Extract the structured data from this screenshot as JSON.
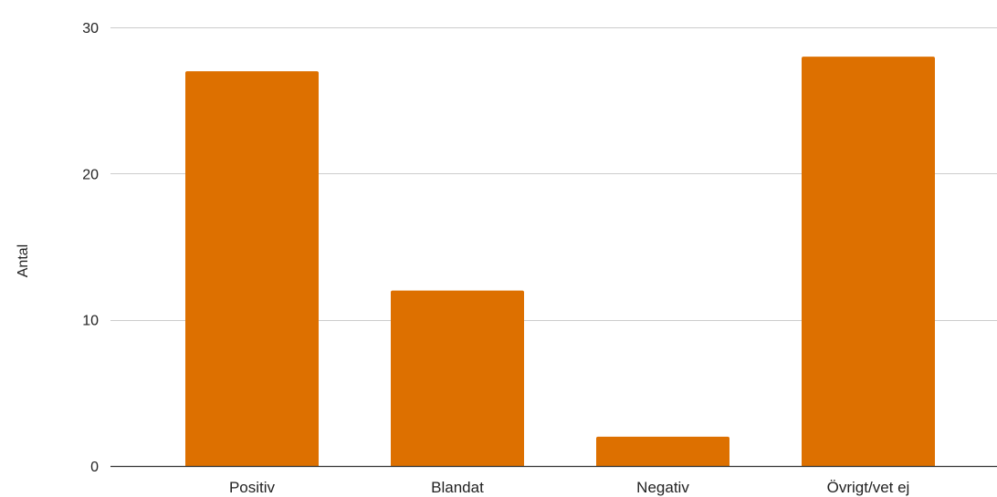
{
  "chart_data": {
    "type": "bar",
    "title": "",
    "xlabel": "",
    "ylabel": "Antal",
    "categories": [
      "Positiv",
      "Blandat",
      "Negativ",
      "Övrigt/vet ej"
    ],
    "values": [
      27,
      12,
      2,
      28
    ],
    "ylim": [
      0,
      30
    ],
    "yticks": [
      0,
      10,
      20,
      30
    ],
    "grid": true,
    "legend": "none",
    "bar_color": "#dd7000"
  }
}
